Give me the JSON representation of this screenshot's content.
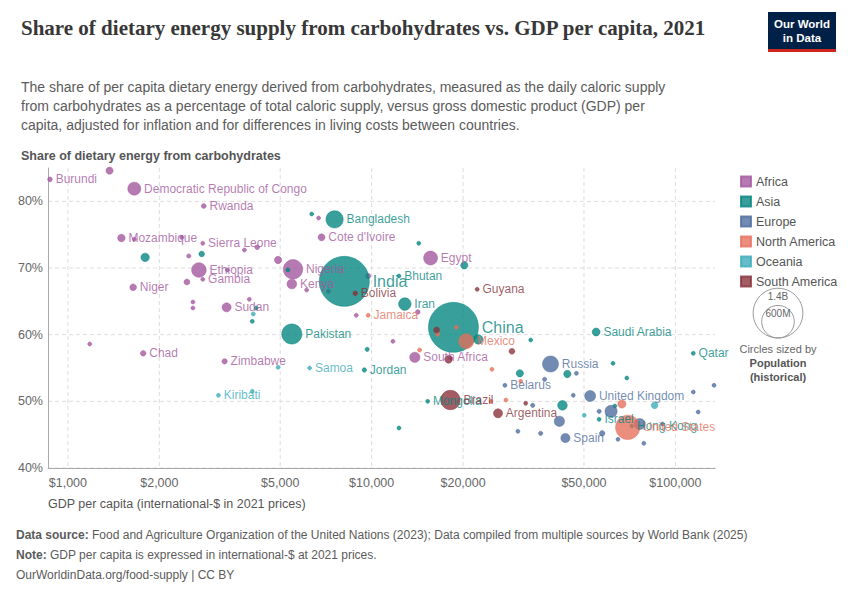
{
  "chart_data": {
    "type": "scatter",
    "title": "Share of dietary energy supply from carbohydrates vs. GDP per capita, 2021",
    "subtitle": "The share of per capita dietary energy derived from carbohydrates, measured as the daily caloric supply from carbohydrates as a percentage of total caloric supply, versus gross domestic product (GDP) per capita, adjusted for inflation and for differences in living costs between countries.",
    "y_label": "Share of dietary energy from carbohydrates",
    "x_label": "GDP per capita (international-$ in 2021 prices)",
    "log": "x",
    "grid": true,
    "legend": "right",
    "xlim": [
      860,
      135000
    ],
    "ylim": [
      40,
      85
    ],
    "xticks": [
      {
        "value": 1000,
        "label": "$1,000"
      },
      {
        "value": 2000,
        "label": "$2,000"
      },
      {
        "value": 5000,
        "label": "$5,000"
      },
      {
        "value": 10000,
        "label": "$10,000"
      },
      {
        "value": 20000,
        "label": "$20,000"
      },
      {
        "value": 50000,
        "label": "$50,000"
      },
      {
        "value": 100000,
        "label": "$100,000"
      }
    ],
    "yticks": [
      {
        "value": 40,
        "label": "40%"
      },
      {
        "value": 50,
        "label": "50%"
      },
      {
        "value": 60,
        "label": "60%"
      },
      {
        "value": 70,
        "label": "70%"
      },
      {
        "value": 80,
        "label": "80%"
      }
    ],
    "size_legend": {
      "title": "Circles sized by",
      "variable": "Population",
      "note": "(historical)",
      "values": [
        {
          "value": 1400000000,
          "label": "1.4B"
        },
        {
          "value": 600000000,
          "label": "600M"
        }
      ]
    },
    "source": {
      "label": "Data source:",
      "text": "Food and Agriculture Organization of the United Nations (2023); Data compiled from multiple sources by World Bank (2025)"
    },
    "note": {
      "label": "Note:",
      "text": "GDP per capita is expressed in international-$ at 2021 prices."
    },
    "footer": "OurWorldinData.org/food-supply | CC BY",
    "logo": [
      "Our World",
      "in Data"
    ],
    "series": [
      {
        "name": "Africa",
        "color": "#a2559c",
        "points": [
          {
            "name": "Burundi",
            "x": 873,
            "y": 83.3,
            "population": 12600000
          },
          {
            "x": 1371,
            "y": 84.6,
            "population": 28900000
          },
          {
            "name": "Democratic Republic of Congo",
            "x": 1654,
            "y": 81.9,
            "population": 95900000
          },
          {
            "name": "Rwanda",
            "x": 2800,
            "y": 79.3,
            "population": 13500000
          },
          {
            "name": "Mozambique",
            "x": 1500,
            "y": 74.5,
            "population": 32100000
          },
          {
            "name": "Sierra Leone",
            "x": 2780,
            "y": 73.7,
            "population": 8400000
          },
          {
            "name": "Cote d'Ivoire",
            "x": 6840,
            "y": 74.6,
            "population": 27500000
          },
          {
            "name": "Egypt",
            "x": 15630,
            "y": 71.5,
            "population": 109300000
          },
          {
            "name": "Nigeria",
            "x": 5510,
            "y": 69.8,
            "population": 213400000
          },
          {
            "name": "Ethiopia",
            "x": 2700,
            "y": 69.7,
            "population": 120300000
          },
          {
            "name": "Kenya",
            "x": 5460,
            "y": 67.6,
            "population": 53000000
          },
          {
            "name": "Gambia",
            "x": 2780,
            "y": 68.3,
            "population": 2600000
          },
          {
            "name": "Niger",
            "x": 1640,
            "y": 67.1,
            "population": 25300000
          },
          {
            "name": "Sudan",
            "x": 3330,
            "y": 64.1,
            "population": 45700000
          },
          {
            "name": "Chad",
            "x": 1770,
            "y": 57.2,
            "population": 17200000
          },
          {
            "name": "Zimbabwe",
            "x": 3280,
            "y": 56.0,
            "population": 16000000
          },
          {
            "name": "South Africa",
            "x": 13870,
            "y": 56.6,
            "population": 59400000
          },
          {
            "x": 2370,
            "y": 74.6,
            "population": 10000000
          },
          {
            "x": 1655,
            "y": 74.3,
            "population": 5000000
          },
          {
            "x": 4200,
            "y": 73.1,
            "population": 12000000
          },
          {
            "x": 3810,
            "y": 72.7,
            "population": 5000000
          },
          {
            "x": 4920,
            "y": 71.2,
            "population": 30000000
          },
          {
            "x": 6690,
            "y": 77.5,
            "population": 5000000
          },
          {
            "x": 2500,
            "y": 71.8,
            "population": 10000000
          },
          {
            "x": 2465,
            "y": 67.9,
            "population": 20000000
          },
          {
            "x": 2580,
            "y": 64.9,
            "population": 8000000
          },
          {
            "x": 3350,
            "y": 69.7,
            "population": 6000000
          },
          {
            "x": 3955,
            "y": 65.3,
            "population": 8000000
          },
          {
            "x": 6110,
            "y": 66.7,
            "population": 4000000
          },
          {
            "x": 7210,
            "y": 66.5,
            "population": 3000000
          },
          {
            "x": 9745,
            "y": 68.8,
            "population": 15000000
          },
          {
            "x": 8900,
            "y": 62.9,
            "population": 4000000
          },
          {
            "x": 14190,
            "y": 63.4,
            "population": 12000000
          },
          {
            "x": 11750,
            "y": 59.0,
            "population": 1000000
          },
          {
            "x": 1180,
            "y": 58.6,
            "population": 5000000
          },
          {
            "x": 2580,
            "y": 64.0,
            "population": 7000000
          },
          {
            "x": 18170,
            "y": 56.5,
            "population": 2000000
          }
        ]
      },
      {
        "name": "Asia",
        "color": "#00847e",
        "points": [
          {
            "name": "Bangladesh",
            "x": 7550,
            "y": 77.3,
            "population": 169400000
          },
          {
            "name": "India",
            "x": 8130,
            "y": 68.0,
            "population": 1414000000
          },
          {
            "name": "Bhutan",
            "x": 12300,
            "y": 68.8,
            "population": 780000
          },
          {
            "name": "Iran",
            "x": 12860,
            "y": 64.6,
            "population": 87900000
          },
          {
            "name": "Pakistan",
            "x": 5460,
            "y": 60.1,
            "population": 231400000
          },
          {
            "name": "China",
            "x": 18590,
            "y": 61.1,
            "population": 1412000000
          },
          {
            "name": "Jordan",
            "x": 9460,
            "y": 54.7,
            "population": 11100000
          },
          {
            "name": "Saudi Arabia",
            "x": 54830,
            "y": 60.4,
            "population": 35900000
          },
          {
            "name": "Qatar",
            "x": 114500,
            "y": 57.2,
            "population": 2700000
          },
          {
            "name": "Mongolia",
            "x": 15290,
            "y": 50.0,
            "population": 3300000
          },
          {
            "name": "Hong Kong",
            "x": 71800,
            "y": 46.3,
            "population": 7400000
          },
          {
            "name": "Israel",
            "x": 56070,
            "y": 47.3,
            "population": 9000000
          },
          {
            "x": 6350,
            "y": 78.1,
            "population": 3000000
          },
          {
            "x": 14290,
            "y": 73.7,
            "population": 5000000
          },
          {
            "x": 20190,
            "y": 70.4,
            "population": 30000000
          },
          {
            "x": 2757,
            "y": 72.1,
            "population": 18000000
          },
          {
            "x": 1796,
            "y": 71.6,
            "population": 40000000
          },
          {
            "x": 4168,
            "y": 64.0,
            "population": 3000000
          },
          {
            "x": 4045,
            "y": 62.0,
            "population": 5000000
          },
          {
            "x": 5300,
            "y": 69.7,
            "population": 10000000
          },
          {
            "x": 9665,
            "y": 57.8,
            "population": 10000000
          },
          {
            "x": 22430,
            "y": 59.3,
            "population": 50000000
          },
          {
            "x": 30750,
            "y": 54.2,
            "population": 30000000
          },
          {
            "x": 44070,
            "y": 54.1,
            "population": 30000000
          },
          {
            "x": 62300,
            "y": 55.7,
            "population": 5000000
          },
          {
            "x": 33400,
            "y": 59.2,
            "population": 1500000
          },
          {
            "x": 42480,
            "y": 49.4,
            "population": 52000000
          },
          {
            "x": 63200,
            "y": 49.3,
            "population": 5000000
          },
          {
            "x": 69200,
            "y": 53.5,
            "population": 3000000
          },
          {
            "x": 12300,
            "y": 46.0,
            "population": 3000000
          }
        ]
      },
      {
        "name": "Europe",
        "color": "#4c6a9c",
        "points": [
          {
            "name": "Russia",
            "x": 38800,
            "y": 55.6,
            "population": 145100000
          },
          {
            "name": "Belarus",
            "x": 27460,
            "y": 52.4,
            "population": 9300000
          },
          {
            "name": "United Kingdom",
            "x": 52400,
            "y": 50.8,
            "population": 67300000
          },
          {
            "name": "Spain",
            "x": 43440,
            "y": 44.5,
            "population": 47400000
          },
          {
            "x": 37100,
            "y": 53.3,
            "population": 10000000
          },
          {
            "x": 47200,
            "y": 54.2,
            "population": 5000000
          },
          {
            "x": 56100,
            "y": 48.5,
            "population": 10000000
          },
          {
            "x": 61400,
            "y": 48.5,
            "population": 84000000
          },
          {
            "x": 64700,
            "y": 44.3,
            "population": 5000000
          },
          {
            "x": 78700,
            "y": 43.7,
            "population": 5000000
          },
          {
            "x": 76300,
            "y": 46.6,
            "population": 68000000
          },
          {
            "x": 90700,
            "y": 46.6,
            "population": 5000000
          },
          {
            "x": 118800,
            "y": 48.4,
            "population": 1000000
          },
          {
            "x": 134000,
            "y": 52.4,
            "population": 600000
          },
          {
            "x": 114500,
            "y": 51.4,
            "population": 5000000
          },
          {
            "x": 33900,
            "y": 49.4,
            "population": 10000000
          },
          {
            "x": 36000,
            "y": 45.2,
            "population": 10000000
          },
          {
            "x": 30300,
            "y": 45.5,
            "population": 5000000
          },
          {
            "x": 41500,
            "y": 47.0,
            "population": 60000000
          },
          {
            "x": 46100,
            "y": 50.9,
            "population": 5000000
          },
          {
            "x": 57400,
            "y": 45.2,
            "population": 17000000
          }
        ]
      },
      {
        "name": "North America",
        "color": "#e56e5a",
        "points": [
          {
            "name": "United States",
            "x": 69660,
            "y": 46.1,
            "population": 336500000
          },
          {
            "name": "Mexico",
            "x": 20480,
            "y": 59.0,
            "population": 126700000
          },
          {
            "name": "Jamaica",
            "x": 9740,
            "y": 62.9,
            "population": 2800000
          },
          {
            "x": 24890,
            "y": 54.8,
            "population": 1000000
          },
          {
            "x": 30970,
            "y": 53.0,
            "population": 1000000
          },
          {
            "x": 27680,
            "y": 50.2,
            "population": 5000000
          },
          {
            "x": 24720,
            "y": 50.0,
            "population": 2000000
          },
          {
            "x": 14390,
            "y": 57.7,
            "population": 10000000
          },
          {
            "x": 16480,
            "y": 60.1,
            "population": 11000000
          },
          {
            "x": 66650,
            "y": 49.6,
            "population": 38000000
          },
          {
            "x": 19010,
            "y": 61.1,
            "population": 5000000
          }
        ]
      },
      {
        "name": "Oceania",
        "color": "#38aaba",
        "points": [
          {
            "name": "Samoa",
            "x": 6250,
            "y": 55.0,
            "population": 220000
          },
          {
            "name": "Kiribati",
            "x": 3130,
            "y": 50.9,
            "population": 130000
          },
          {
            "x": 4075,
            "y": 63.1,
            "population": 10000000
          },
          {
            "x": 4920,
            "y": 55.1,
            "population": 500000
          },
          {
            "x": 4045,
            "y": 51.5,
            "population": 300000
          },
          {
            "x": 85400,
            "y": 49.4,
            "population": 26000000
          },
          {
            "x": 50100,
            "y": 47.9,
            "population": 5000000
          }
        ]
      },
      {
        "name": "South America",
        "color": "#883039",
        "points": [
          {
            "name": "Bolivia",
            "x": 8830,
            "y": 66.2,
            "population": 12100000
          },
          {
            "name": "Guyana",
            "x": 22250,
            "y": 66.8,
            "population": 800000
          },
          {
            "name": "Brazil",
            "x": 18170,
            "y": 50.2,
            "population": 214300000
          },
          {
            "name": "Argentina",
            "x": 26060,
            "y": 48.2,
            "population": 45300000
          },
          {
            "x": 17910,
            "y": 56.3,
            "population": 33000000
          },
          {
            "x": 16360,
            "y": 60.7,
            "population": 20000000
          },
          {
            "x": 28960,
            "y": 57.5,
            "population": 19000000
          },
          {
            "x": 32150,
            "y": 49.7,
            "population": 3500000
          }
        ]
      }
    ]
  }
}
